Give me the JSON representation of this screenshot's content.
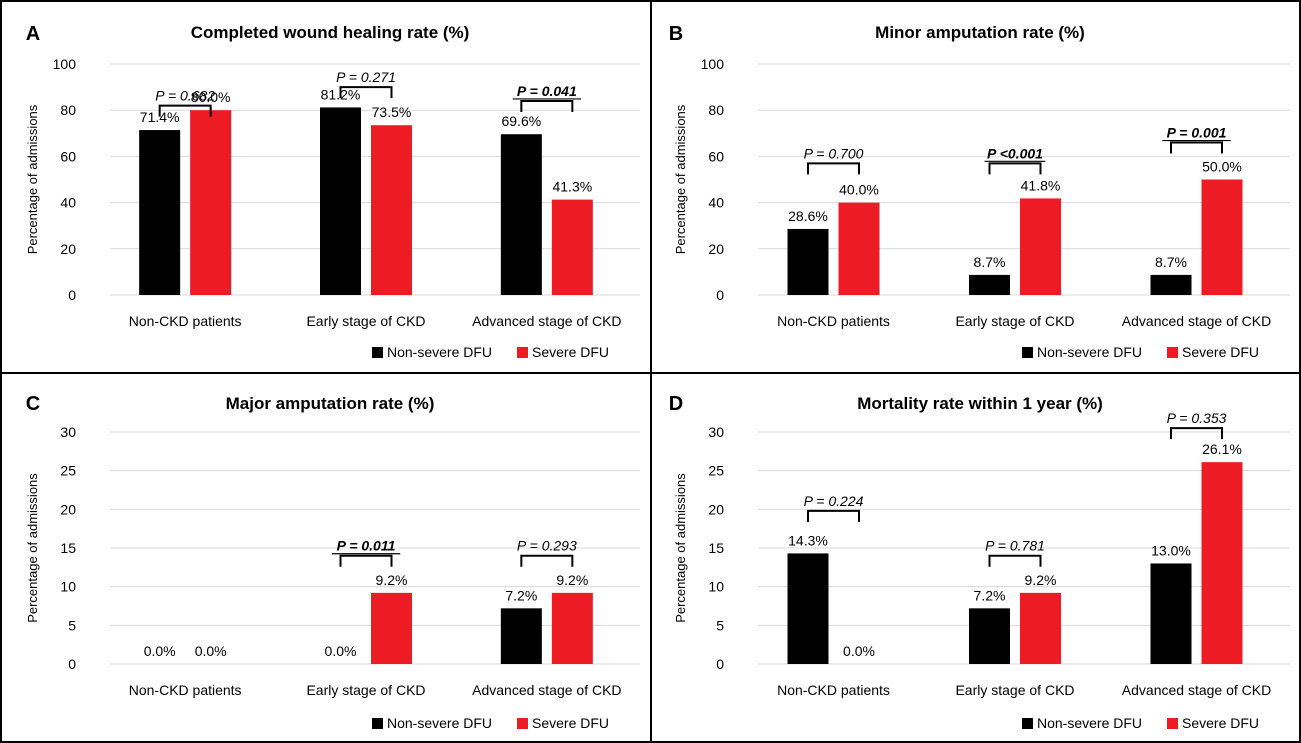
{
  "colors": {
    "non_severe": "#000000",
    "severe": "#ed1c24",
    "grid": "#d9d9d9",
    "border": "#000000",
    "text": "#000000"
  },
  "legend": {
    "non_severe_label": "Non-severe DFU",
    "severe_label": "Severe DFU"
  },
  "chart_data": [
    {
      "panel": "A",
      "type": "bar",
      "title": "Completed wound healing rate (%)",
      "ylabel": "Percentage of admissions",
      "xlabel": "",
      "ylim": [
        0,
        100
      ],
      "yticks": [
        0,
        20,
        40,
        60,
        80,
        100
      ],
      "grid": true,
      "legend_position": "bottom-right",
      "categories": [
        "Non-CKD patients",
        "Early stage of CKD",
        "Advanced stage of CKD"
      ],
      "series": [
        {
          "name": "Non-severe DFU",
          "values": [
            71.4,
            81.2,
            69.6
          ],
          "labels": [
            "71.4%",
            "81.2%",
            "69.6%"
          ]
        },
        {
          "name": "Severe DFU",
          "values": [
            80.0,
            73.5,
            41.3
          ],
          "labels": [
            "80.0%",
            "73.5%",
            "41.3%"
          ]
        }
      ],
      "pvalues": [
        {
          "text": "P = 0.682",
          "bold": false,
          "at": 82
        },
        {
          "text": "P = 0.271",
          "bold": false,
          "at": 90
        },
        {
          "text": "P = 0.041",
          "bold": true,
          "at": 84
        }
      ]
    },
    {
      "panel": "B",
      "type": "bar",
      "title": "Minor amputation rate (%)",
      "ylabel": "Percentage of admissions",
      "xlabel": "",
      "ylim": [
        0,
        100
      ],
      "yticks": [
        0,
        20,
        40,
        60,
        80,
        100
      ],
      "grid": true,
      "legend_position": "bottom-right",
      "categories": [
        "Non-CKD patients",
        "Early stage of CKD",
        "Advanced stage of CKD"
      ],
      "series": [
        {
          "name": "Non-severe DFU",
          "values": [
            28.6,
            8.7,
            8.7
          ],
          "labels": [
            "28.6%",
            "8.7%",
            "8.7%"
          ]
        },
        {
          "name": "Severe DFU",
          "values": [
            40.0,
            41.8,
            50.0
          ],
          "labels": [
            "40.0%",
            "41.8%",
            "50.0%"
          ]
        }
      ],
      "pvalues": [
        {
          "text": "P = 0.700",
          "bold": false,
          "at": 57
        },
        {
          "text": "P <0.001",
          "bold": true,
          "at": 57
        },
        {
          "text": "P = 0.001",
          "bold": true,
          "at": 66
        }
      ]
    },
    {
      "panel": "C",
      "type": "bar",
      "title": "Major amputation rate (%)",
      "ylabel": "Percentage of admissions",
      "xlabel": "",
      "ylim": [
        0,
        30
      ],
      "yticks": [
        0,
        5,
        10,
        15,
        20,
        25,
        30
      ],
      "grid": true,
      "legend_position": "bottom-right",
      "categories": [
        "Non-CKD patients",
        "Early stage of CKD",
        "Advanced stage of CKD"
      ],
      "series": [
        {
          "name": "Non-severe DFU",
          "values": [
            0.0,
            0.0,
            7.2
          ],
          "labels": [
            "0.0%",
            "0.0%",
            "7.2%"
          ]
        },
        {
          "name": "Severe DFU",
          "values": [
            0.0,
            9.2,
            9.2
          ],
          "labels": [
            "0.0%",
            "9.2%",
            "9.2%"
          ]
        }
      ],
      "pvalues": [
        null,
        {
          "text": "P = 0.011",
          "bold": true,
          "at": 14
        },
        {
          "text": "P = 0.293",
          "bold": false,
          "at": 14
        }
      ]
    },
    {
      "panel": "D",
      "type": "bar",
      "title": "Mortality rate within 1 year (%)",
      "ylabel": "Percentage of admissions",
      "xlabel": "",
      "ylim": [
        0,
        30
      ],
      "yticks": [
        0,
        5,
        10,
        15,
        20,
        25,
        30
      ],
      "grid": true,
      "legend_position": "bottom-right",
      "categories": [
        "Non-CKD patients",
        "Early stage of CKD",
        "Advanced stage of CKD"
      ],
      "series": [
        {
          "name": "Non-severe DFU",
          "values": [
            14.3,
            7.2,
            13.0
          ],
          "labels": [
            "14.3%",
            "7.2%",
            "13.0%"
          ]
        },
        {
          "name": "Severe DFU",
          "values": [
            0.0,
            9.2,
            26.1
          ],
          "labels": [
            "0.0%",
            "9.2%",
            "26.1%"
          ]
        }
      ],
      "pvalues": [
        {
          "text": "P = 0.224",
          "bold": false,
          "at": 19.8
        },
        {
          "text": "P = 0.781",
          "bold": false,
          "at": 14
        },
        {
          "text": "P = 0.353",
          "bold": false,
          "at": 30.5
        }
      ]
    }
  ]
}
